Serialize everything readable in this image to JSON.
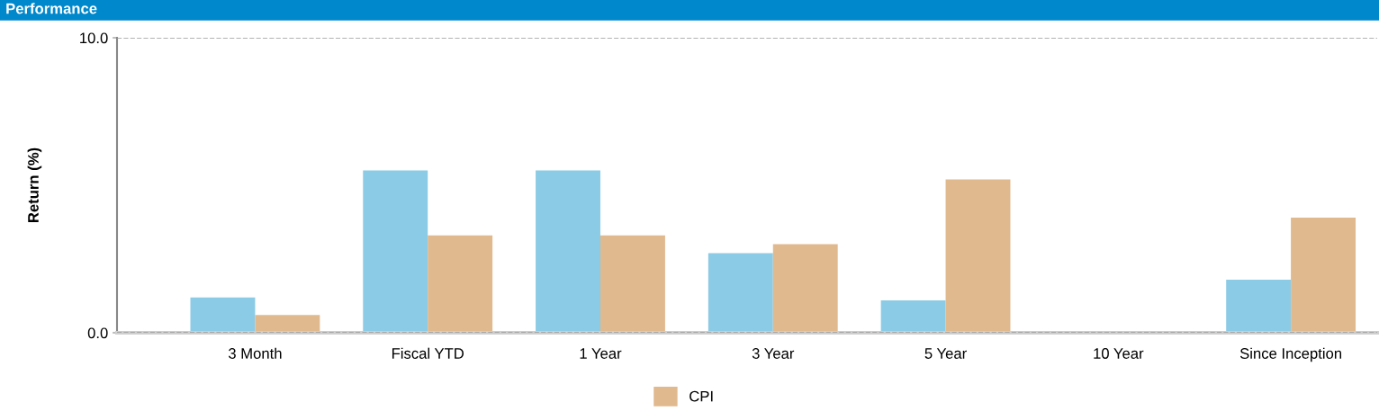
{
  "chart_data": {
    "type": "bar",
    "title": "Performance",
    "ylabel": "Return (%)",
    "categories": [
      "3 Month",
      "Fiscal YTD",
      "1 Year",
      "3 Year",
      "5 Year",
      "10 Year",
      "Since Inception"
    ],
    "series": [
      {
        "color": "#8ccbe6",
        "values": [
          1.2,
          5.5,
          5.5,
          2.7,
          1.1,
          null,
          1.8
        ]
      },
      {
        "name": "CPI",
        "color": "#e0b98e",
        "values": [
          0.6,
          3.3,
          3.3,
          3.0,
          5.2,
          null,
          3.9
        ]
      }
    ],
    "ylim": [
      0,
      10
    ],
    "yticks": [
      {
        "value": 0,
        "label": "0.0"
      },
      {
        "value": 10,
        "label": "10.0"
      }
    ],
    "grid": "y",
    "legend": "bottom"
  }
}
